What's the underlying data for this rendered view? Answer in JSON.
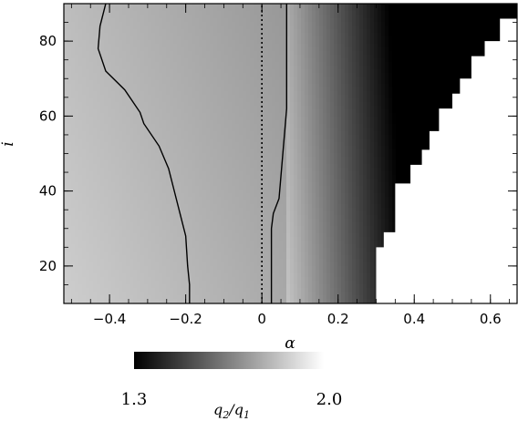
{
  "chart_data": {
    "type": "heatmap",
    "title": "",
    "xlabel": "α",
    "ylabel": "i",
    "xlim": [
      -0.52,
      0.67
    ],
    "ylim": [
      10,
      90
    ],
    "xticks": [
      -0.4,
      -0.2,
      0,
      0.2,
      0.4,
      0.6
    ],
    "xtick_labels": [
      "−0.4",
      "−0.2",
      "0",
      "0.2",
      "0.4",
      "0.6"
    ],
    "yticks": [
      20,
      40,
      60,
      80
    ],
    "ytick_labels": [
      "20",
      "40",
      "60",
      "80"
    ],
    "grid": false,
    "colorbar": {
      "label": "q2/q1",
      "label_main": "q",
      "label_sub1": "2",
      "label_div": "/q",
      "label_sub2": "1",
      "min": 1.3,
      "max": 2.0,
      "min_label": "1.3",
      "max_label": "2.0",
      "colormap": "grayscale (black = low, white = high)"
    },
    "contours": [
      {
        "name": "",
        "style": "solid",
        "points": [
          [
            -0.19,
            10
          ],
          [
            -0.19,
            15
          ],
          [
            -0.195,
            20
          ],
          [
            -0.2,
            28
          ],
          [
            -0.215,
            34
          ],
          [
            -0.23,
            40
          ],
          [
            -0.245,
            46
          ],
          [
            -0.27,
            52
          ],
          [
            -0.31,
            58
          ],
          [
            -0.32,
            61
          ],
          [
            -0.36,
            67
          ],
          [
            -0.41,
            72
          ],
          [
            -0.43,
            78
          ],
          [
            -0.425,
            84
          ],
          [
            -0.41,
            90
          ]
        ]
      },
      {
        "name": "",
        "style": "solid",
        "points": [
          [
            0.025,
            10
          ],
          [
            0.025,
            20
          ],
          [
            0.025,
            30
          ],
          [
            0.03,
            34
          ],
          [
            0.045,
            38
          ],
          [
            0.05,
            44
          ],
          [
            0.055,
            50
          ],
          [
            0.06,
            56
          ],
          [
            0.065,
            62
          ],
          [
            0.065,
            70
          ],
          [
            0.065,
            80
          ],
          [
            0.065,
            90
          ]
        ]
      },
      {
        "name": "",
        "style": "dotted",
        "points": [
          [
            0,
            10
          ],
          [
            0,
            90
          ]
        ]
      }
    ],
    "undefined_region": {
      "color": "white",
      "staircase_boundary": [
        [
          0.3,
          10
        ],
        [
          0.3,
          25
        ],
        [
          0.32,
          25
        ],
        [
          0.32,
          29
        ],
        [
          0.35,
          29
        ],
        [
          0.35,
          42
        ],
        [
          0.39,
          42
        ],
        [
          0.39,
          47
        ],
        [
          0.42,
          47
        ],
        [
          0.42,
          51
        ],
        [
          0.44,
          51
        ],
        [
          0.44,
          56
        ],
        [
          0.465,
          56
        ],
        [
          0.465,
          62
        ],
        [
          0.5,
          62
        ],
        [
          0.5,
          66
        ],
        [
          0.52,
          66
        ],
        [
          0.52,
          70
        ],
        [
          0.55,
          70
        ],
        [
          0.55,
          76
        ],
        [
          0.585,
          76
        ],
        [
          0.585,
          80
        ],
        [
          0.625,
          80
        ],
        [
          0.625,
          86
        ],
        [
          0.67,
          86
        ]
      ]
    }
  }
}
